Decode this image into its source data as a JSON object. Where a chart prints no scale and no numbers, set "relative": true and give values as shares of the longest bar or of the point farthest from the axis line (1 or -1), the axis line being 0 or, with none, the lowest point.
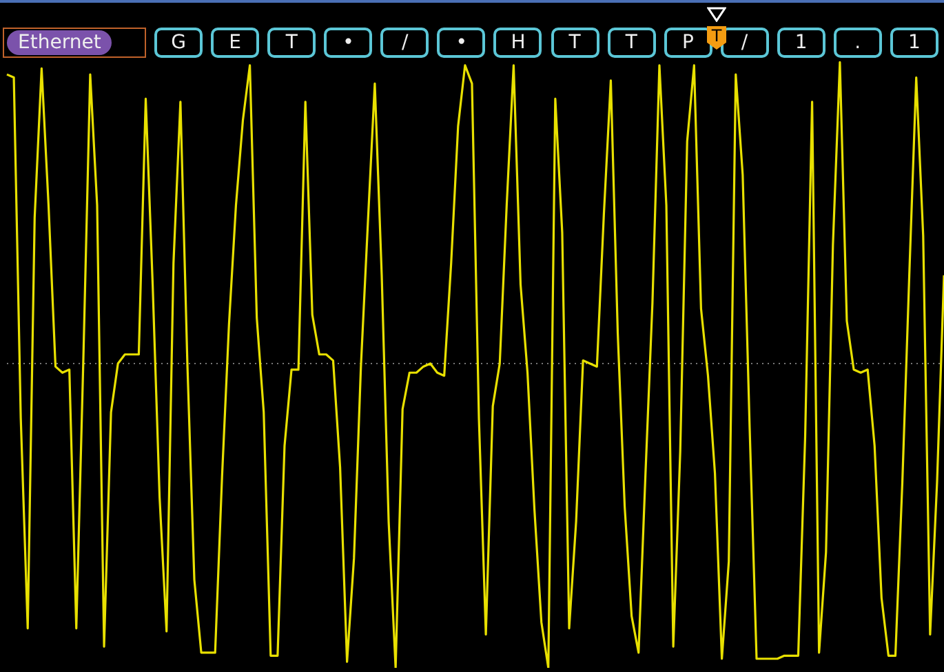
{
  "chart_data": {
    "type": "line",
    "relative": true,
    "marker": "none",
    "line_style": "solid",
    "ref_lines": [
      {
        "axis": "y",
        "value": 0,
        "color": "#777777",
        "line_style": "dotted"
      }
    ],
    "annotations": [
      "Ethernet",
      "G",
      "E",
      "T",
      "•",
      "/",
      "•",
      "H",
      "T",
      "T",
      "P",
      "/",
      "1",
      ".",
      "1",
      "T"
    ],
    "categories": [
      null,
      null,
      null,
      null,
      null,
      null,
      null,
      null,
      null,
      null,
      null,
      null,
      null,
      null,
      null,
      null,
      null,
      null,
      null,
      null,
      null,
      null,
      null,
      null,
      null,
      null,
      null,
      null,
      null,
      null,
      null,
      null,
      null,
      null,
      null,
      null,
      null,
      null,
      null,
      null,
      null,
      null,
      null,
      null,
      null,
      null,
      null,
      null,
      null,
      null,
      null,
      null,
      null,
      null,
      null,
      null,
      null,
      null,
      null,
      null,
      null,
      null,
      null,
      null,
      null,
      null,
      null,
      null,
      null,
      null,
      null,
      null,
      null,
      null,
      null,
      null,
      null,
      null,
      null,
      null,
      null,
      null,
      null,
      null,
      null,
      null,
      null,
      null,
      null,
      null,
      null,
      null,
      null,
      null,
      null,
      null,
      null,
      null,
      null,
      null,
      null,
      null,
      null,
      null,
      null,
      null,
      null,
      null,
      null,
      null,
      null,
      null,
      null,
      null,
      null,
      null,
      null,
      null,
      null,
      null,
      null,
      null,
      null,
      null,
      null,
      null,
      null,
      null,
      null,
      null,
      null,
      null,
      null,
      null,
      null,
      null
    ],
    "series": [
      {
        "color": "#e8e000",
        "values": [
          0.95,
          0.94,
          -0.18,
          -0.87,
          0.48,
          0.97,
          0.52,
          -0.01,
          -0.03,
          -0.02,
          -0.87,
          0,
          0.95,
          0.52,
          -0.93,
          -0.16,
          0,
          0.03,
          0.03,
          0.03,
          0.87,
          0.26,
          -0.44,
          -0.88,
          0.33,
          0.86,
          0,
          -0.71,
          -0.95,
          -0.95,
          -0.95,
          -0.37,
          0.13,
          0.52,
          0.8,
          0.98,
          0.15,
          -0.16,
          -0.96,
          -0.96,
          -0.27,
          -0.02,
          -0.02,
          0.86,
          0.16,
          0.03,
          0.03,
          0.01,
          -0.34,
          -0.98,
          -0.64,
          -0.01,
          0.46,
          0.92,
          0.29,
          -0.52,
          -1.0,
          -0.15,
          -0.03,
          -0.03,
          -0.01,
          0,
          -0.03,
          -0.04,
          0.33,
          0.78,
          0.98,
          0.92,
          -0.18,
          -0.89,
          -0.14,
          0,
          0.52,
          0.98,
          0.26,
          -0.03,
          -0.48,
          -0.85,
          -1.0,
          0.87,
          0.43,
          -0.87,
          -0.52,
          0.01,
          0,
          -0.01,
          0.49,
          0.93,
          0.1,
          -0.47,
          -0.83,
          -0.95,
          -0.36,
          0.2,
          0.98,
          0.52,
          -0.93,
          -0.29,
          0.73,
          0.98,
          0.18,
          -0.04,
          -0.36,
          -0.97,
          -0.65,
          0.95,
          0.62,
          -0.21,
          -0.97,
          -0.97,
          -0.97,
          -0.97,
          -0.96,
          -0.96,
          -0.96,
          -0.24,
          0.86,
          -0.95,
          -0.62,
          0.39,
          0.99,
          0.14,
          -0.02,
          -0.03,
          -0.02,
          -0.27,
          -0.77,
          -0.96,
          -0.96,
          -0.39,
          0.29,
          0.94,
          0.42,
          -0.89,
          -0.39,
          0.29
        ]
      }
    ]
  }
}
